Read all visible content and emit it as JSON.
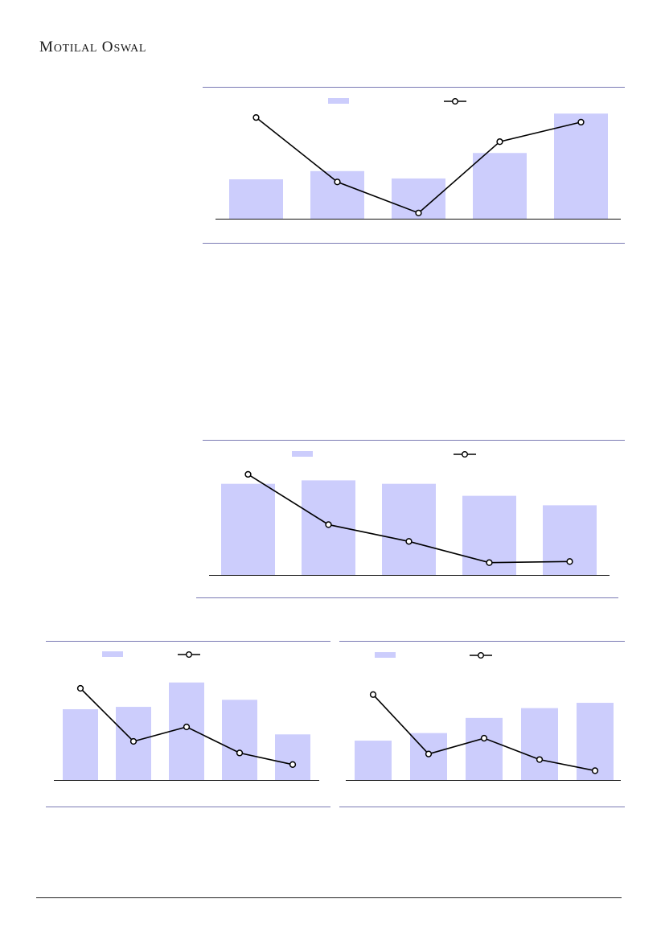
{
  "header": {
    "brand_first": "M",
    "brand_rest_1": "OTILAL",
    "brand_second": "O",
    "brand_rest_2": "SWAL"
  },
  "colors": {
    "bar": "#cccdfc",
    "line": "#000000",
    "frame_rule": "#7a7ab4",
    "axis": "#111111",
    "footer_rule": "#222222"
  },
  "chart_data": [
    {
      "type": "bar",
      "categories": [
        "",
        "",
        "",
        "",
        ""
      ],
      "series": [
        {
          "kind": "bar",
          "values": [
            48,
            58,
            49,
            80,
            128
          ]
        },
        {
          "kind": "line",
          "values": [
            88,
            32,
            5,
            67,
            84
          ]
        }
      ],
      "ylim_bar": [
        0,
        140
      ],
      "ylim_line": [
        0,
        100
      ],
      "legend": "top-center",
      "grid": false
    },
    {
      "type": "bar",
      "categories": [
        "",
        "",
        "",
        "",
        ""
      ],
      "series": [
        {
          "kind": "bar",
          "values": [
            106,
            110,
            106,
            92,
            81
          ]
        },
        {
          "kind": "line",
          "values": [
            90,
            45,
            30,
            11,
            12
          ]
        }
      ],
      "ylim_bar": [
        0,
        130
      ],
      "ylim_line": [
        0,
        100
      ],
      "legend": "top-center",
      "grid": false
    },
    {
      "type": "bar",
      "categories": [
        "",
        "",
        "",
        "",
        ""
      ],
      "series": [
        {
          "kind": "bar",
          "values": [
            90,
            93,
            124,
            102,
            58
          ]
        },
        {
          "kind": "line",
          "values": [
            95,
            40,
            55,
            28,
            16
          ]
        }
      ],
      "ylim_bar": [
        0,
        135
      ],
      "ylim_line": [
        0,
        110
      ],
      "legend": "top-left",
      "grid": false
    },
    {
      "type": "bar",
      "categories": [
        "",
        "",
        "",
        "",
        ""
      ],
      "series": [
        {
          "kind": "bar",
          "values": [
            52,
            62,
            82,
            95,
            102
          ]
        },
        {
          "kind": "line",
          "values": [
            92,
            28,
            45,
            22,
            10
          ]
        }
      ],
      "ylim_bar": [
        0,
        135
      ],
      "ylim_line": [
        0,
        110
      ],
      "legend": "top-left",
      "grid": false
    }
  ]
}
